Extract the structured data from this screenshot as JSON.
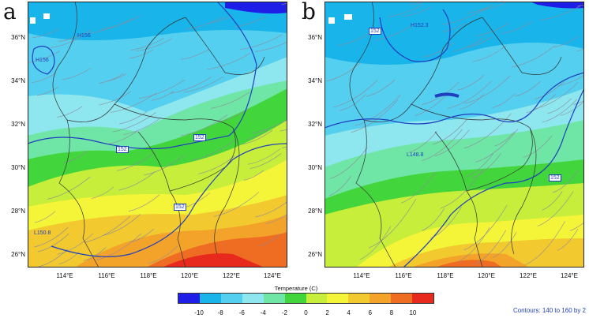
{
  "panels": [
    {
      "letter": "a",
      "lat_labels": [
        "36°N",
        "34°N",
        "32°N",
        "30°N",
        "28°N",
        "26°N"
      ],
      "lon_labels": [
        "114°E",
        "116°E",
        "118°E",
        "120°E",
        "122°E",
        "124°E"
      ],
      "contour_labels": [
        "H156",
        "H156",
        "152",
        "152",
        "152",
        "L150.8"
      ]
    },
    {
      "letter": "b",
      "lat_labels": [
        "36°N",
        "34°N",
        "32°N",
        "30°N",
        "28°N",
        "26°N"
      ],
      "lon_labels": [
        "114°E",
        "116°E",
        "118°E",
        "120°E",
        "122°E",
        "124°E"
      ],
      "contour_labels": [
        "152",
        "H152.3",
        "L148.8",
        "152"
      ]
    }
  ],
  "colorbar": {
    "title": "Temperature  (C)",
    "ticks": [
      "-10",
      "-8",
      "-6",
      "-4",
      "-2",
      "0",
      "2",
      "4",
      "6",
      "8",
      "10"
    ],
    "colors": [
      "#1e1ee6",
      "#19b4ea",
      "#55cff0",
      "#8ee6ee",
      "#6fe6a6",
      "#43d63c",
      "#c7ee3a",
      "#f4f439",
      "#f2c92f",
      "#f3a32a",
      "#ef6d22",
      "#e82a1e"
    ]
  },
  "contour_note": "Contours: 140 to 160 by 2",
  "colors": {
    "contour": "#1f3fbf",
    "boundary": "#333333",
    "streamline": "#8c8c9c"
  }
}
